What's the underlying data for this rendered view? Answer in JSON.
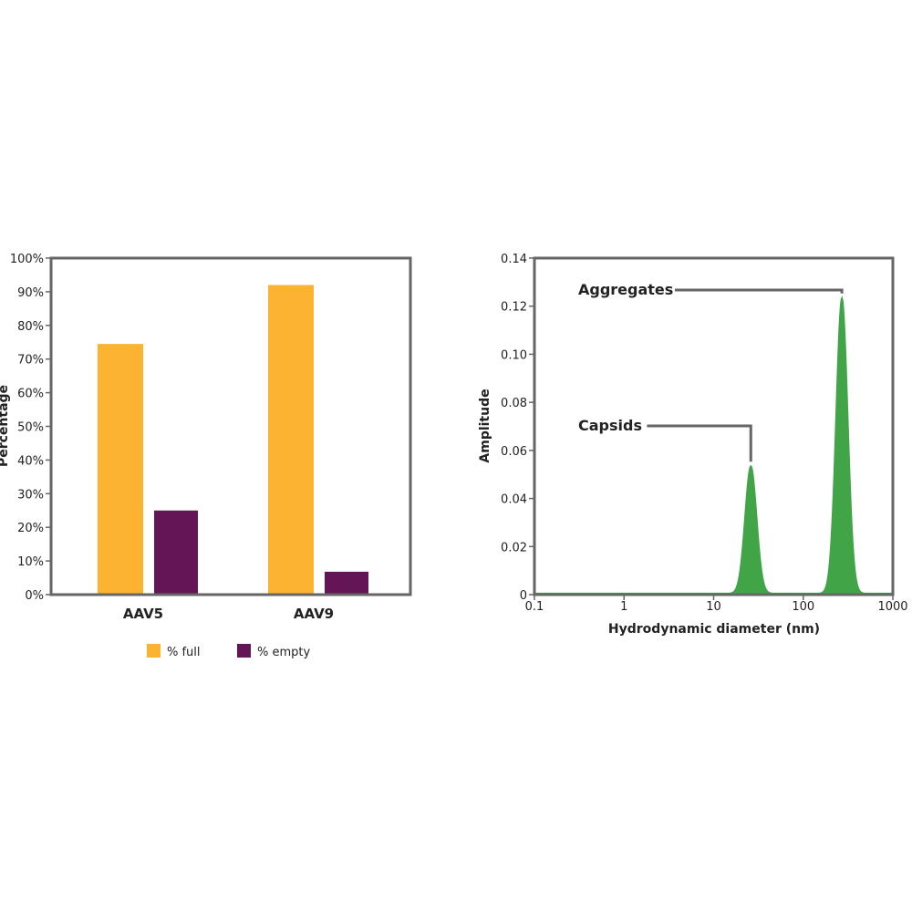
{
  "chart_data": [
    {
      "type": "bar",
      "title": "",
      "xlabel": "",
      "ylabel": "Percentage",
      "ylim": [
        0,
        100
      ],
      "yticks": [
        "0%",
        "10%",
        "20%",
        "30%",
        "40%",
        "50%",
        "60%",
        "70%",
        "80%",
        "90%",
        "100%"
      ],
      "categories": [
        "AAV5",
        "AAV9"
      ],
      "series": [
        {
          "name": "% full",
          "values": [
            74.5,
            92
          ],
          "color": "#fbb331"
        },
        {
          "name": "% empty",
          "values": [
            25,
            6.8
          ],
          "color": "#641556"
        }
      ],
      "legend": "bottom-center",
      "grid": false
    },
    {
      "type": "area",
      "title": "",
      "xlabel": "Hydrodynamic diameter (nm)",
      "ylabel": "Amplitude",
      "xscale": "log",
      "xlim": [
        0.1,
        1000
      ],
      "ylim": [
        0,
        0.14
      ],
      "xticks": [
        "0.1",
        "1",
        "10",
        "100",
        "1000"
      ],
      "yticks": [
        "0",
        "0.02",
        "0.04",
        "0.06",
        "0.08",
        "0.10",
        "0.12",
        "0.14"
      ],
      "series": [
        {
          "color": "#41a548",
          "peaks": [
            {
              "center": 26,
              "amplitude": 0.053
            },
            {
              "center": 270,
              "amplitude": 0.123
            }
          ],
          "baseline": 0.0005
        }
      ],
      "annotations": [
        {
          "text": "Capsids",
          "x": 26,
          "y": 0.053
        },
        {
          "text": "Aggregates",
          "x": 270,
          "y": 0.123
        }
      ],
      "grid": false
    }
  ]
}
